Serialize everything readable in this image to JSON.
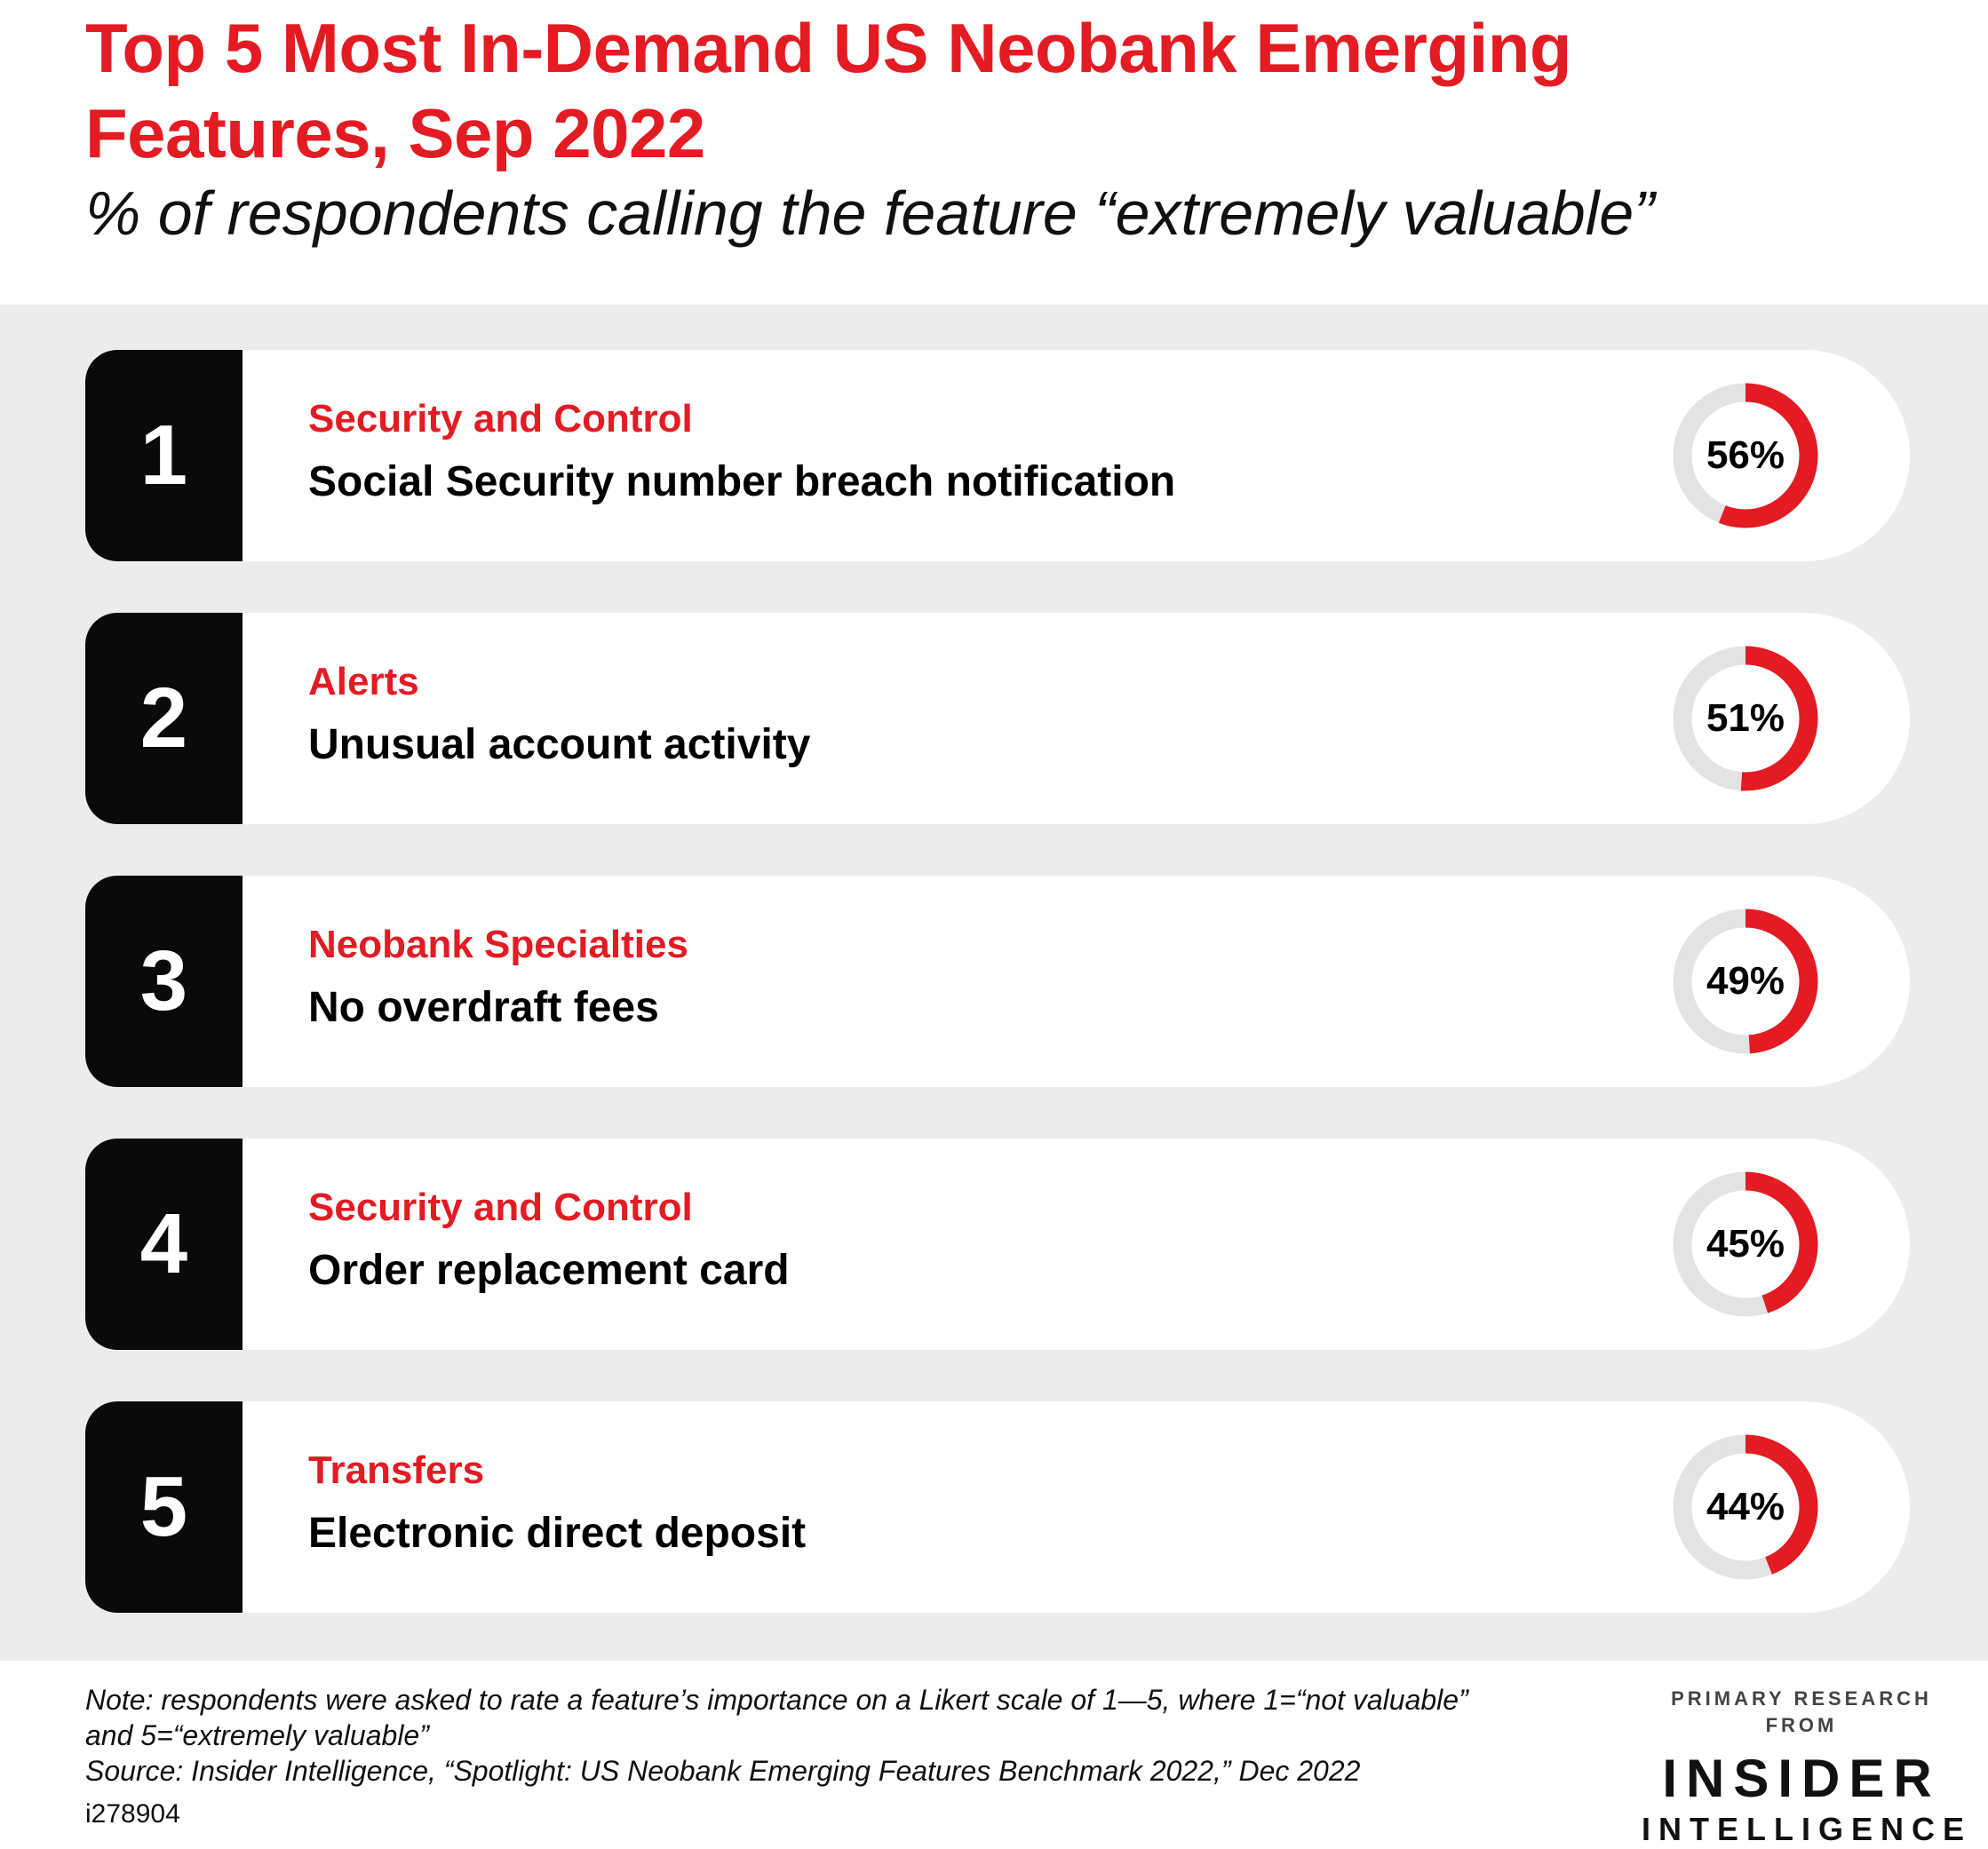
{
  "header": {
    "title": "Top 5 Most In-Demand US Neobank Emerging Features, Sep 2022",
    "subtitle": "% of respondents calling the feature “extremely valuable”"
  },
  "chart_data": {
    "type": "table",
    "title": "Top 5 Most In-Demand US Neobank Emerging Features, Sep 2022",
    "subtitle": "% of respondents calling the feature “extremely valuable”",
    "unit": "%",
    "rows": [
      {
        "rank": "1",
        "category": "Security and Control",
        "feature": "Social Security number breach notification",
        "value": 56,
        "label": "56%"
      },
      {
        "rank": "2",
        "category": "Alerts",
        "feature": "Unusual account activity",
        "value": 51,
        "label": "51%"
      },
      {
        "rank": "3",
        "category": "Neobank Specialties",
        "feature": "No overdraft fees",
        "value": 49,
        "label": "49%"
      },
      {
        "rank": "4",
        "category": "Security and Control",
        "feature": "Order replacement card",
        "value": 45,
        "label": "45%"
      },
      {
        "rank": "5",
        "category": "Transfers",
        "feature": "Electronic direct deposit",
        "value": 44,
        "label": "44%"
      }
    ],
    "colors": {
      "accent": "#e31b23",
      "track": "#e3e3e4",
      "rank_box": "#0a0a0a",
      "panel": "#ececed"
    }
  },
  "footer": {
    "note_line1": "Note: respondents were asked to rate a feature’s importance on a Likert scale of 1—5, where 1=“not valuable”",
    "note_line2": "and 5=“extremely valuable”",
    "source": "Source: Insider Intelligence, “Spotlight: US Neobank Emerging Features Benchmark 2022,” Dec 2022",
    "chart_id": "i278904"
  },
  "logo": {
    "top": "PRIMARY RESEARCH FROM",
    "mid": "INSIDER",
    "bottom": "INTELLIGENCE"
  }
}
